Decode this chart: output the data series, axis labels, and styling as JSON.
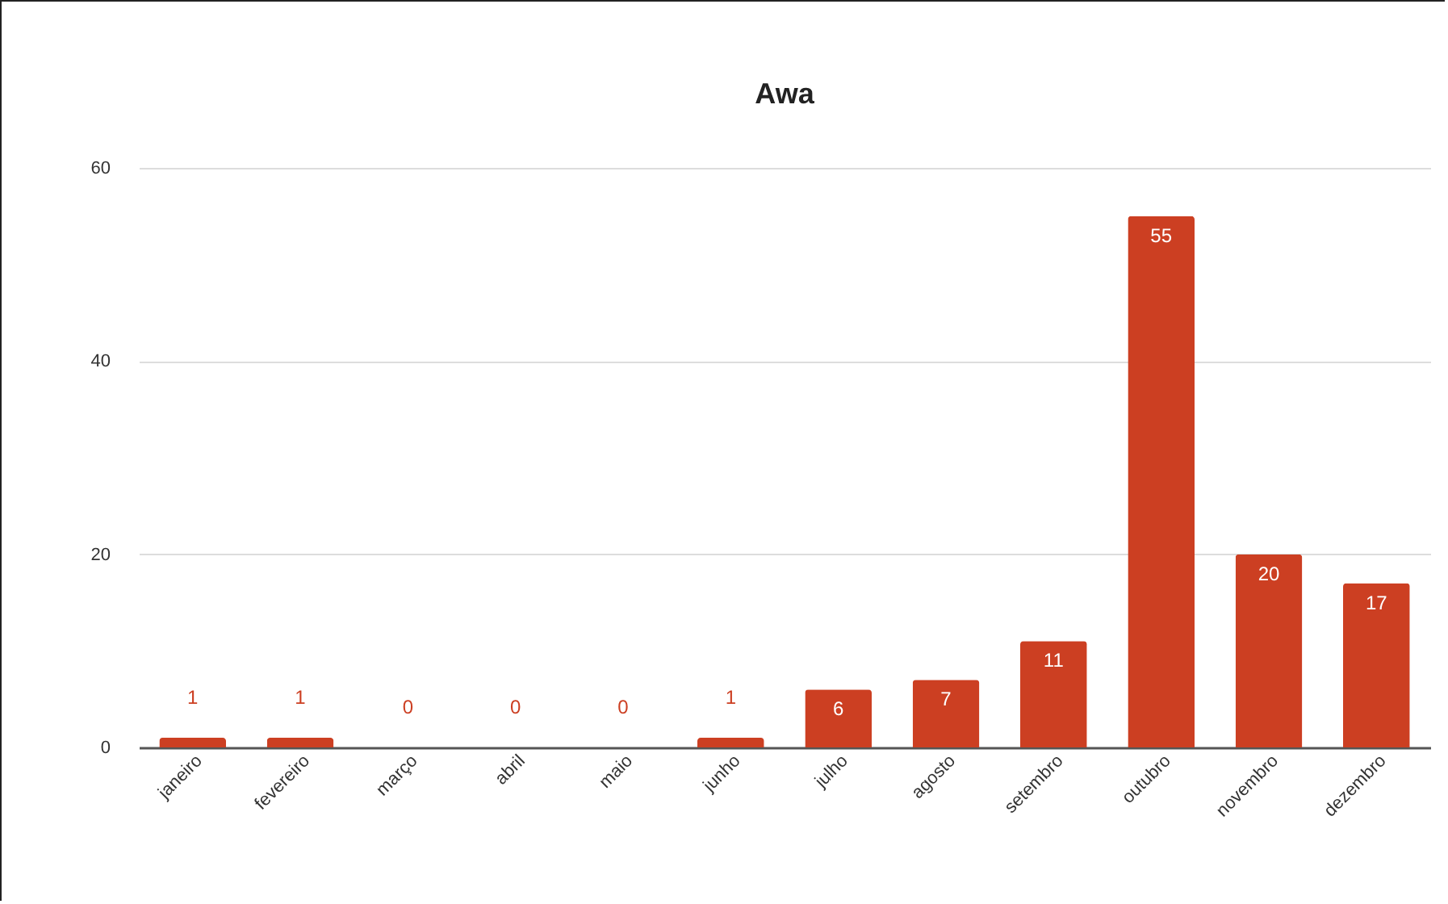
{
  "chart_data": {
    "type": "bar",
    "title": "Awa",
    "categories": [
      "janeiro",
      "fevereiro",
      "março",
      "abril",
      "maio",
      "junho",
      "julho",
      "agosto",
      "setembro",
      "outubro",
      "novembro",
      "dezembro"
    ],
    "values": [
      1,
      1,
      0,
      0,
      0,
      1,
      6,
      7,
      11,
      55,
      20,
      17
    ],
    "color": "#cc3f22",
    "ylim": [
      0,
      60
    ],
    "yticks": [
      0,
      20,
      40,
      60
    ],
    "grid": "y",
    "data_labels": true
  }
}
